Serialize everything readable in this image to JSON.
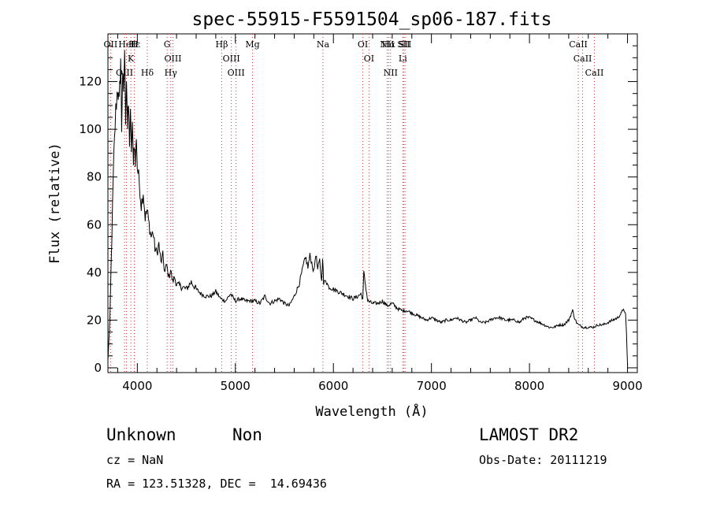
{
  "chart_data": {
    "type": "line",
    "title": "spec-55915-F5591504_sp06-187.fits",
    "xlabel": "Wavelength (Å)",
    "ylabel": "Flux (relative)",
    "xlim": [
      3700,
      9100
    ],
    "ylim": [
      -2,
      140
    ],
    "xticks": [
      4000,
      5000,
      6000,
      7000,
      8000,
      9000
    ],
    "yticks": [
      0,
      20,
      40,
      60,
      80,
      100,
      120
    ],
    "grid": false,
    "series": [
      {
        "x": [
          3700,
          3720,
          3740,
          3760,
          3780,
          3800,
          3815,
          3830,
          3840,
          3850,
          3860,
          3870,
          3880,
          3890,
          3900,
          3910,
          3920,
          3930,
          3940,
          3950,
          3960,
          3970,
          3980,
          3990,
          4000,
          4020,
          4040,
          4060,
          4080,
          4100,
          4120,
          4140,
          4160,
          4180,
          4200,
          4220,
          4240,
          4260,
          4280,
          4300,
          4320,
          4340,
          4360,
          4380,
          4400,
          4450,
          4500,
          4550,
          4600,
          4650,
          4700,
          4750,
          4800,
          4850,
          4900,
          4950,
          5000,
          5050,
          5100,
          5150,
          5200,
          5250,
          5300,
          5350,
          5400,
          5450,
          5500,
          5550,
          5600,
          5650,
          5700,
          5720,
          5740,
          5760,
          5780,
          5800,
          5820,
          5840,
          5860,
          5880,
          5890,
          5900,
          5920,
          5950,
          6000,
          6050,
          6100,
          6150,
          6200,
          6250,
          6280,
          6300,
          6310,
          6350,
          6400,
          6450,
          6500,
          6550,
          6600,
          6650,
          6700,
          6750,
          6800,
          6850,
          6900,
          6950,
          7000,
          7050,
          7100,
          7150,
          7200,
          7250,
          7300,
          7350,
          7400,
          7450,
          7500,
          7550,
          7600,
          7650,
          7700,
          7750,
          7800,
          7850,
          7900,
          7950,
          8000,
          8050,
          8100,
          8150,
          8200,
          8250,
          8300,
          8350,
          8400,
          8420,
          8440,
          8460,
          8480,
          8500,
          8550,
          8600,
          8650,
          8700,
          8750,
          8800,
          8850,
          8900,
          8940,
          8960,
          8980,
          8990,
          9000
        ],
        "y": [
          3,
          20,
          55,
          88,
          108,
          118,
          110,
          130,
          100,
          125,
          112,
          134,
          105,
          122,
          100,
          110,
          95,
          105,
          92,
          100,
          88,
          95,
          85,
          98,
          84,
          78,
          68,
          74,
          63,
          66,
          60,
          55,
          57,
          50,
          48,
          52,
          44,
          47,
          40,
          43,
          38,
          41,
          36,
          38,
          35,
          34,
          33,
          36,
          33,
          31,
          30,
          30,
          32,
          29,
          28,
          31,
          28,
          29,
          28,
          28,
          28,
          27,
          30,
          27,
          28,
          29,
          27,
          26,
          30,
          35,
          44,
          46,
          42,
          47,
          44,
          40,
          48,
          41,
          45,
          36,
          47,
          35,
          37,
          34,
          33,
          32,
          31,
          30,
          29,
          30,
          31,
          29,
          40,
          28,
          27,
          27,
          28,
          26,
          27,
          25,
          24,
          24,
          23,
          22,
          21,
          20,
          21,
          20,
          19,
          20,
          20,
          21,
          20,
          19,
          20,
          21,
          19,
          19,
          20,
          21,
          21,
          20,
          20,
          20,
          19,
          21,
          21,
          20,
          19,
          18,
          17,
          17,
          18,
          18,
          20,
          22,
          24,
          21,
          19,
          18,
          17,
          17,
          17,
          18,
          18,
          19,
          20,
          21,
          23,
          25,
          22,
          14,
          1
        ]
      }
    ],
    "lines": [
      {
        "label": "Hε",
        "x": 3970
      },
      {
        "label": "K",
        "x": 3934
      },
      {
        "label": "OII",
        "x": 3727
      },
      {
        "label": "OIII",
        "x": 3869
      },
      {
        "label": "HeI",
        "x": 3889
      },
      {
        "label": "H",
        "x": 3969
      },
      {
        "label": "Hδ",
        "x": 4102
      },
      {
        "label": "G",
        "x": 4304
      },
      {
        "label": "OIII",
        "x": 4363
      },
      {
        "label": "Hγ",
        "x": 4341
      },
      {
        "label": "Hβ",
        "x": 4861
      },
      {
        "label": "OIII",
        "x": 4959
      },
      {
        "label": "OIII",
        "x": 5007
      },
      {
        "label": "Mg",
        "x": 5175
      },
      {
        "label": "Na",
        "x": 5893
      },
      {
        "label": "OI",
        "x": 6300
      },
      {
        "label": "OI",
        "x": 6363
      },
      {
        "label": "NII",
        "x": 6548
      },
      {
        "label": "Li",
        "x": 6708
      },
      {
        "label": "NII",
        "x": 6583
      },
      {
        "label": "SII",
        "x": 6716
      },
      {
        "label": "Hα",
        "x": 6563
      },
      {
        "label": "SII",
        "x": 6731
      },
      {
        "label": "CaII",
        "x": 8498
      },
      {
        "label": "CaII",
        "x": 8542
      },
      {
        "label": "CaII",
        "x": 8662
      }
    ]
  },
  "footer": {
    "class": "Unknown",
    "subclass": "Non",
    "survey": "LAMOST DR2",
    "cz": "cz = NaN",
    "obs_date": "Obs-Date: 20111219",
    "radec": "RA = 123.51328, DEC =  14.69436"
  },
  "colors": {
    "line": "#000000",
    "marker": "#cc3333",
    "axis": "#000000"
  }
}
